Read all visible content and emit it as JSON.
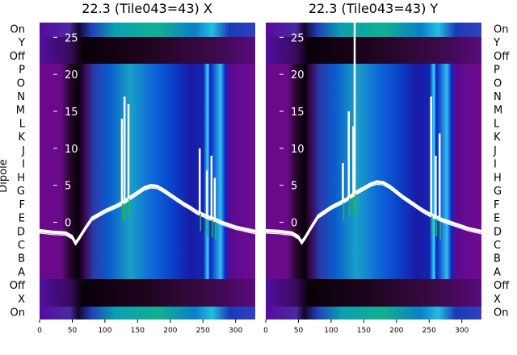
{
  "chart_data": [
    {
      "type": "heatmap",
      "title": "22.3 (Tile043=43) X",
      "ylabel": "Dipole",
      "dipole_labels": [
        "On",
        "Y",
        "Off",
        "P",
        "O",
        "N",
        "M",
        "L",
        "K",
        "J",
        "I",
        "H",
        "G",
        "F",
        "E",
        "D",
        "C",
        "B",
        "A",
        "Off",
        "X",
        "On"
      ],
      "x_ticks": [
        "0",
        "50",
        "100",
        "150",
        "200",
        "250",
        "300"
      ],
      "xlim": [
        0,
        330
      ],
      "inner_y_ticks": [
        "25",
        "20",
        "15",
        "10",
        "5",
        "0"
      ],
      "inner_ylim": [
        -3,
        27
      ],
      "overlay_series": {
        "x": [
          0,
          20,
          40,
          50,
          55,
          60,
          70,
          80,
          100,
          120,
          130,
          140,
          150,
          160,
          170,
          180,
          190,
          200,
          210,
          220,
          230,
          240,
          250,
          260,
          270,
          280,
          290,
          300,
          310,
          320,
          330
        ],
        "y": [
          -1.2,
          -1.4,
          -1.5,
          -2.0,
          -2.8,
          -2.2,
          -0.8,
          0.5,
          1.5,
          2.3,
          2.8,
          3.4,
          4.0,
          4.6,
          4.9,
          4.8,
          4.3,
          3.7,
          3.1,
          2.5,
          2.0,
          1.4,
          1.0,
          0.6,
          0.3,
          -0.1,
          -0.4,
          -0.7,
          -0.9,
          -1.1,
          -1.3
        ],
        "spikes": [
          {
            "x": 126,
            "y": 14
          },
          {
            "x": 130,
            "y": 17
          },
          {
            "x": 136,
            "y": 16
          },
          {
            "x": 245,
            "y": 10
          },
          {
            "x": 256,
            "y": 7
          },
          {
            "x": 263,
            "y": 9
          },
          {
            "x": 268,
            "y": 6
          }
        ]
      }
    },
    {
      "type": "heatmap",
      "title": "22.3 (Tile043=43) Y",
      "ylabel": "",
      "dipole_labels": [
        "On",
        "Y",
        "Off",
        "P",
        "O",
        "N",
        "M",
        "L",
        "K",
        "J",
        "I",
        "H",
        "G",
        "F",
        "E",
        "D",
        "C",
        "B",
        "A",
        "Off",
        "X",
        "On"
      ],
      "x_ticks": [
        "0",
        "50",
        "100",
        "150",
        "200",
        "250",
        "300"
      ],
      "xlim": [
        0,
        330
      ],
      "inner_y_ticks": [
        "25",
        "20",
        "15",
        "10",
        "5",
        "0"
      ],
      "inner_ylim": [
        -3,
        27
      ],
      "overlay_series": {
        "x": [
          0,
          20,
          40,
          50,
          55,
          60,
          70,
          80,
          100,
          120,
          130,
          140,
          150,
          160,
          170,
          180,
          190,
          200,
          210,
          220,
          230,
          240,
          250,
          260,
          270,
          280,
          290,
          300,
          310,
          320,
          330
        ],
        "y": [
          -1.2,
          -1.3,
          -1.5,
          -2.0,
          -2.7,
          -2.1,
          -0.6,
          0.8,
          2.0,
          2.9,
          3.5,
          4.1,
          4.6,
          5.1,
          5.4,
          5.3,
          4.8,
          4.1,
          3.4,
          2.8,
          2.2,
          1.6,
          1.1,
          0.7,
          0.3,
          0.0,
          -0.3,
          -0.6,
          -0.9,
          -1.1,
          -1.3
        ],
        "spikes": [
          {
            "x": 118,
            "y": 8
          },
          {
            "x": 127,
            "y": 15
          },
          {
            "x": 134,
            "y": 13
          },
          {
            "x": 136,
            "y": 27
          },
          {
            "x": 253,
            "y": 17
          },
          {
            "x": 260,
            "y": 9
          },
          {
            "x": 266,
            "y": 12
          }
        ]
      }
    }
  ],
  "colors": {
    "background": "#ffffff",
    "overlay_line": "#ffffff",
    "green_marks": "#1fbf3a"
  }
}
